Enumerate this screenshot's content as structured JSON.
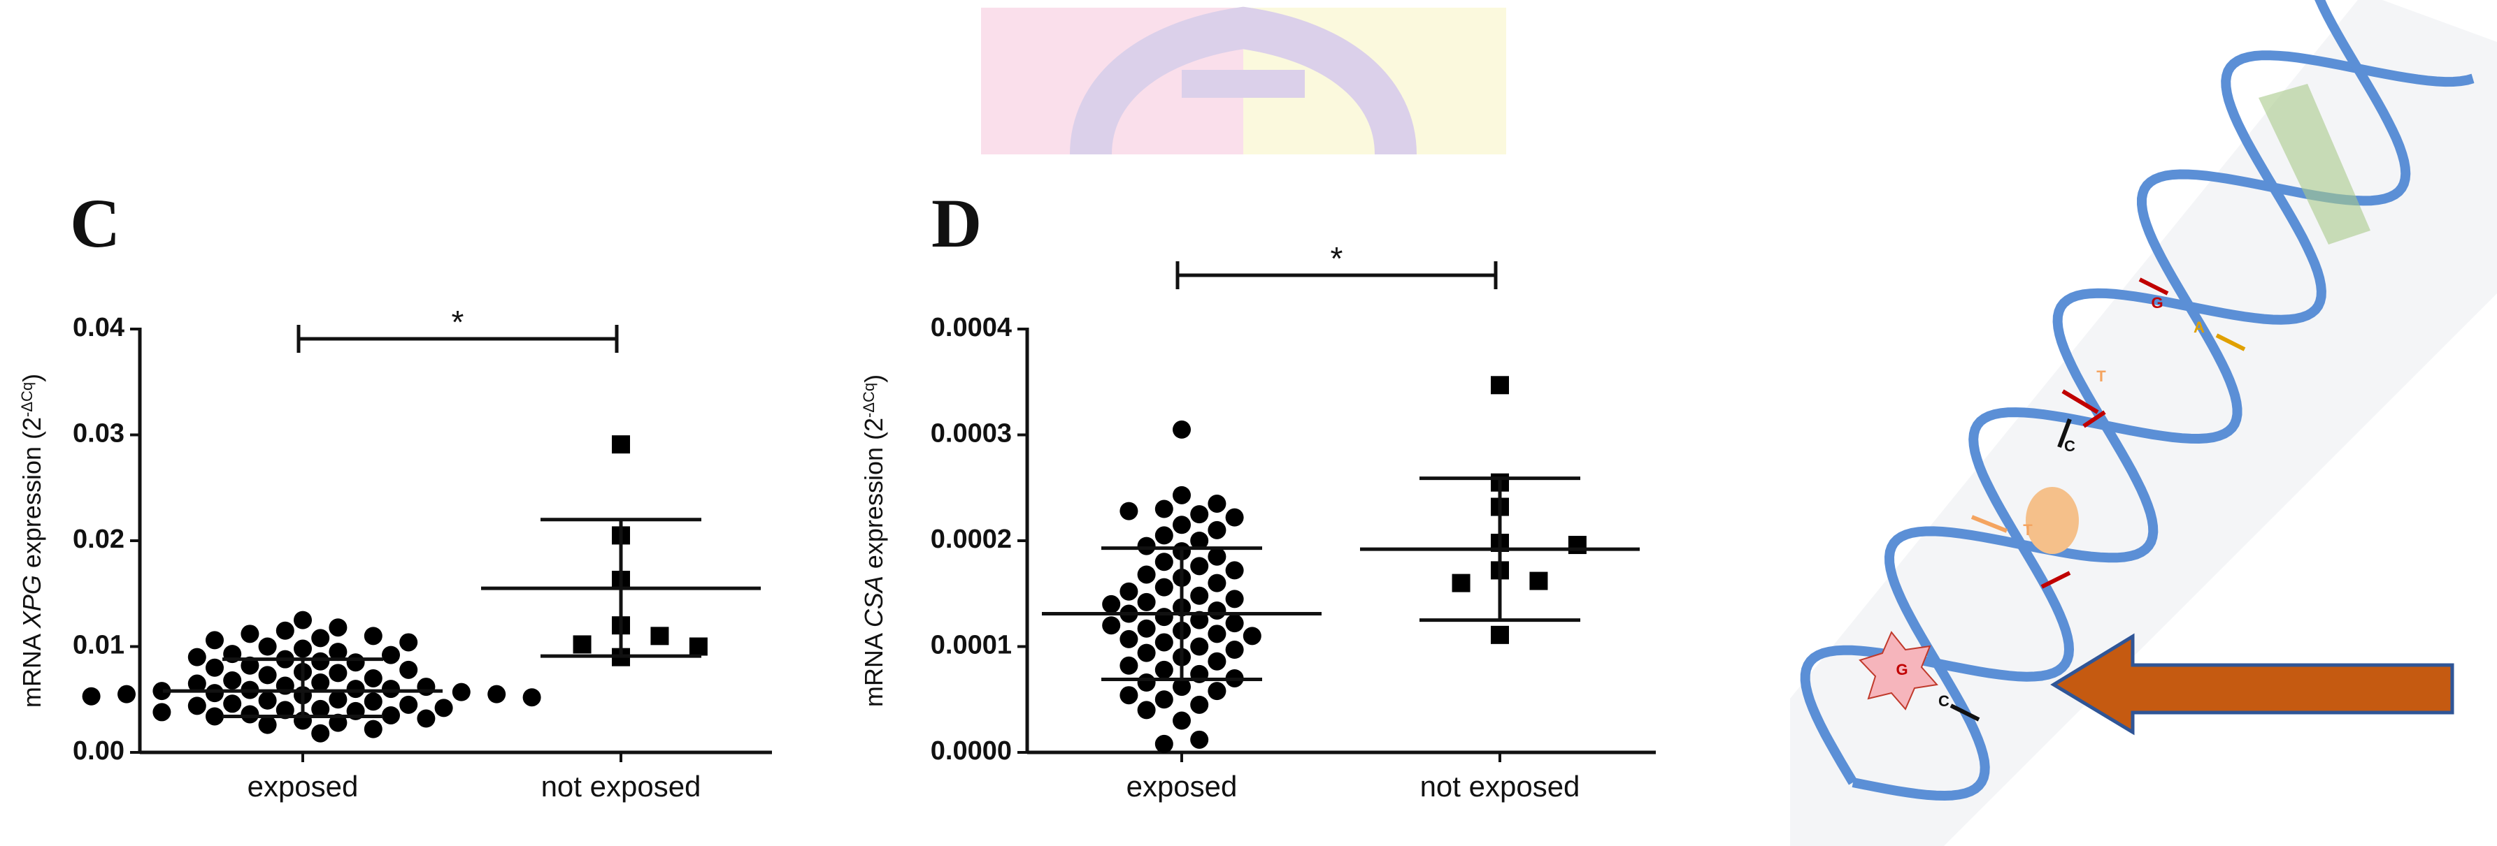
{
  "chart_data": [
    {
      "type": "dot",
      "panel_label": "C",
      "ylabel_parts": [
        "mRNA ",
        "XPG",
        " expression (2",
        "-ΔCq",
        ")"
      ],
      "categories": [
        "exposed",
        "not exposed"
      ],
      "groups": [
        {
          "marker": "circle",
          "values": [
            0.0125,
            0.0118,
            0.0115,
            0.0112,
            0.011,
            0.0108,
            0.0106,
            0.0104,
            0.01,
            0.0098,
            0.0095,
            0.0093,
            0.0092,
            0.009,
            0.0088,
            0.0086,
            0.0085,
            0.0082,
            0.008,
            0.0078,
            0.0076,
            0.0075,
            0.0073,
            0.007,
            0.0068,
            0.0066,
            0.0065,
            0.0063,
            0.0062,
            0.006,
            0.006,
            0.0059,
            0.0058,
            0.0057,
            0.0056,
            0.0055,
            0.0055,
            0.0054,
            0.0053,
            0.0052,
            0.005,
            0.0049,
            0.0048,
            0.0046,
            0.0045,
            0.0044,
            0.0042,
            0.0041,
            0.004,
            0.0039,
            0.0038,
            0.0036,
            0.0035,
            0.0034,
            0.0032,
            0.003,
            0.0028,
            0.0026,
            0.0022,
            0.0018
          ],
          "mean": 0.0058,
          "error_bars": [
            0.0034,
            0.0088
          ]
        },
        {
          "marker": "square",
          "values": [
            0.0291,
            0.0205,
            0.0163,
            0.012,
            0.011,
            0.0102,
            0.01,
            0.009
          ],
          "mean": 0.0155,
          "error_bars": [
            0.0091,
            0.022
          ]
        }
      ],
      "ylim": [
        0,
        0.04
      ],
      "yticks": [
        {
          "value": 0,
          "label": "0.00"
        },
        {
          "value": 0.01,
          "label": "0.01"
        },
        {
          "value": 0.02,
          "label": "0.02"
        },
        {
          "value": 0.03,
          "label": "0.03"
        },
        {
          "value": 0.04,
          "label": "0.04"
        }
      ],
      "significance": "*"
    },
    {
      "type": "dot",
      "panel_label": "D",
      "ylabel_parts": [
        "mRNA ",
        "CSA",
        " expression (2",
        "-ΔCq",
        ")"
      ],
      "categories": [
        "exposed",
        "not exposed"
      ],
      "groups": [
        {
          "marker": "circle",
          "values": [
            0.000305,
            0.000243,
            0.000235,
            0.00023,
            0.000228,
            0.000225,
            0.000222,
            0.000215,
            0.00021,
            0.000205,
            0.0002,
            0.000195,
            0.00019,
            0.000185,
            0.00018,
            0.000176,
            0.000172,
            0.000168,
            0.000165,
            0.00016,
            0.000156,
            0.000152,
            0.000148,
            0.000145,
            0.000142,
            0.00014,
            0.000137,
            0.000134,
            0.000131,
            0.000128,
            0.000125,
            0.000122,
            0.00012,
            0.000117,
            0.000115,
            0.000112,
            0.00011,
            0.000107,
            0.000104,
            0.0001,
            9.7e-05,
            9.4e-05,
            9e-05,
            8.6e-05,
            8.2e-05,
            7.8e-05,
            7.4e-05,
            7e-05,
            6.6e-05,
            6.2e-05,
            5.8e-05,
            5.4e-05,
            5e-05,
            4.5e-05,
            4e-05,
            3e-05,
            1.2e-05,
            8e-06
          ],
          "mean": 0.000131,
          "error_bars": [
            6.9e-05,
            0.000193
          ]
        },
        {
          "marker": "square",
          "values": [
            0.000347,
            0.000255,
            0.000232,
            0.000198,
            0.000196,
            0.000172,
            0.000162,
            0.00016,
            0.000111
          ],
          "mean": 0.000192,
          "error_bars": [
            0.000125,
            0.000259
          ]
        }
      ],
      "ylim": [
        0,
        0.0004
      ],
      "yticks": [
        {
          "value": 0,
          "label": "0.0000"
        },
        {
          "value": 0.0001,
          "label": "0.0001"
        },
        {
          "value": 0.0002,
          "label": "0.0002"
        },
        {
          "value": 0.0003,
          "label": "0.0003"
        },
        {
          "value": 0.0004,
          "label": "0.0004"
        }
      ],
      "significance": "*"
    }
  ],
  "dna_letters": [
    "G",
    "A",
    "T",
    "C",
    "T",
    "G",
    "C"
  ]
}
